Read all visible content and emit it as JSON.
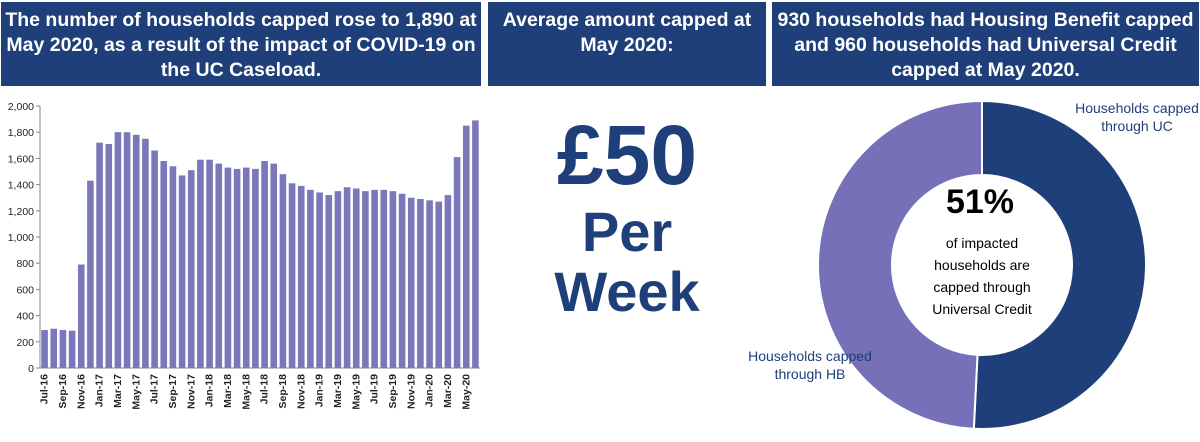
{
  "headers": {
    "left": "The number of households capped rose to 1,890 at May 2020, as a result of the impact of COVID-19 on the UC Caseload.",
    "middle": "Average amount capped at May 2020:",
    "right": "930 households had Housing Benefit capped and 960 households had Universal Credit capped at May 2020."
  },
  "amount": {
    "value": "£50",
    "line2": "Per",
    "line3": "Week"
  },
  "colors": {
    "navy": "#1e3f79",
    "purple": "#7570b8",
    "bar": "#7b77bb"
  },
  "chart_data": [
    {
      "type": "bar",
      "title": "",
      "xlabel": "",
      "ylabel": "",
      "ylim": [
        0,
        2000
      ],
      "yticks": [
        "0",
        "200",
        "400",
        "600",
        "800",
        "1,000",
        "1,200",
        "1,400",
        "1,600",
        "1,800",
        "2,000"
      ],
      "xtick_labels": [
        "Jul-16",
        "Sep-16",
        "Nov-16",
        "Jan-17",
        "Mar-17",
        "May-17",
        "Jul-17",
        "Sep-17",
        "Nov-17",
        "Jan-18",
        "Mar-18",
        "May-18",
        "Jul-18",
        "Sep-18",
        "Nov-18",
        "Jan-19",
        "Mar-19",
        "May-19",
        "Jul-19",
        "Sep-19",
        "Nov-19",
        "Jan-20",
        "Mar-20",
        "May-20"
      ],
      "values": [
        290,
        300,
        290,
        285,
        790,
        1430,
        1720,
        1710,
        1800,
        1800,
        1780,
        1750,
        1660,
        1580,
        1540,
        1470,
        1510,
        1590,
        1590,
        1560,
        1530,
        1520,
        1530,
        1520,
        1580,
        1560,
        1480,
        1410,
        1390,
        1360,
        1340,
        1320,
        1350,
        1380,
        1370,
        1350,
        1360,
        1360,
        1350,
        1330,
        1300,
        1290,
        1280,
        1270,
        1320,
        1610,
        1850,
        1890
      ],
      "grid": false,
      "legend": "none"
    },
    {
      "type": "pie",
      "labels": [
        "Households capped through UC",
        "Households capped through HB"
      ],
      "values": [
        960,
        930
      ],
      "center_value": "51%",
      "center_caption": [
        "of impacted",
        "households are",
        "capped through",
        "Universal Credit"
      ]
    }
  ]
}
